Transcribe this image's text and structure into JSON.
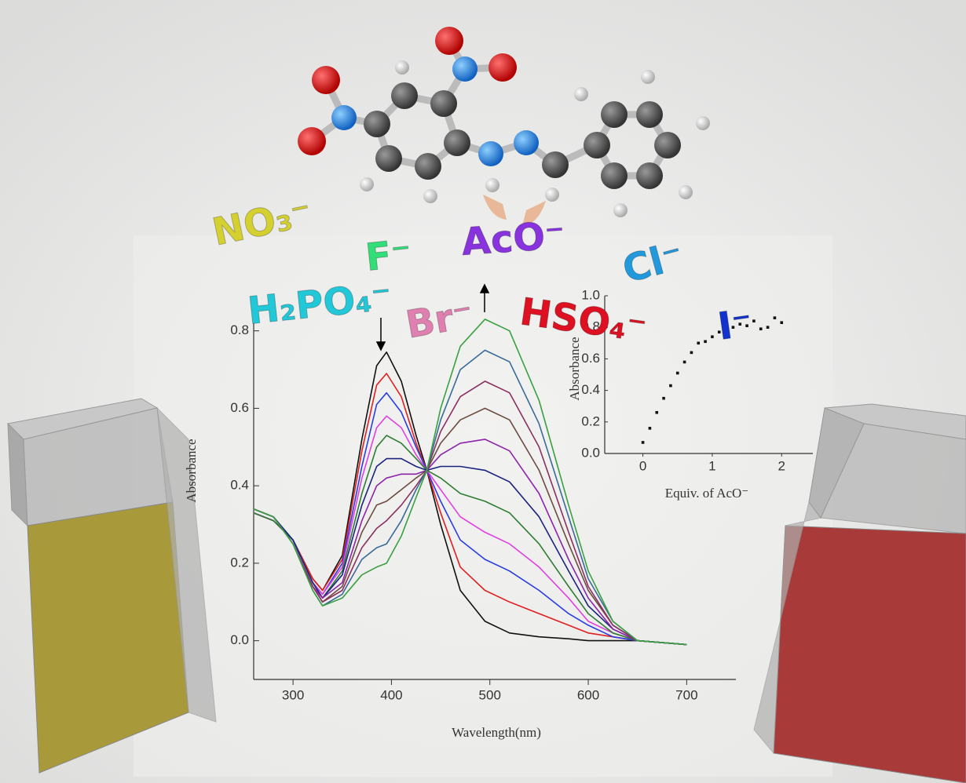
{
  "anions": [
    "NO₃⁻",
    "F⁻",
    "AcO⁻",
    "Cl⁻",
    "I⁻",
    "H₂PO₄⁻",
    "Br⁻",
    "HSO₄⁻"
  ],
  "chart_data": [
    {
      "type": "line",
      "x_label": "Wavelength(nm)",
      "y_label": "Absorbance",
      "x": [
        260,
        280,
        300,
        320,
        330,
        350,
        370,
        385,
        395,
        410,
        425,
        436,
        450,
        470,
        495,
        520,
        550,
        580,
        600,
        625,
        650,
        700
      ],
      "xlim": [
        260,
        750
      ],
      "xticks": [
        300,
        400,
        500,
        600,
        700
      ],
      "ylim": [
        -0.1,
        0.85
      ],
      "yticks": [
        {
          "value": 0,
          "label": "0.0"
        },
        {
          "value": 0.2,
          "label": "0.2"
        },
        {
          "value": 0.4,
          "label": "0.4"
        },
        {
          "value": 0.6,
          "label": "0.6"
        },
        {
          "value": 0.8,
          "label": "0.8"
        }
      ],
      "series": [
        {
          "color": "#111111",
          "values": [
            0.33,
            0.31,
            0.26,
            0.16,
            0.13,
            0.22,
            0.52,
            0.71,
            0.745,
            0.67,
            0.53,
            0.44,
            0.3,
            0.13,
            0.05,
            0.02,
            0.01,
            0.005,
            0,
            0,
            0,
            -0.01
          ]
        },
        {
          "color": "#e02020",
          "values": [
            0.33,
            0.31,
            0.26,
            0.16,
            0.13,
            0.21,
            0.49,
            0.66,
            0.69,
            0.63,
            0.51,
            0.44,
            0.33,
            0.19,
            0.13,
            0.1,
            0.07,
            0.04,
            0.02,
            0.01,
            0,
            -0.01
          ]
        },
        {
          "color": "#2a3ce0",
          "values": [
            0.33,
            0.31,
            0.26,
            0.15,
            0.12,
            0.2,
            0.45,
            0.61,
            0.64,
            0.59,
            0.5,
            0.44,
            0.36,
            0.26,
            0.21,
            0.18,
            0.13,
            0.07,
            0.04,
            0.01,
            0,
            -0.01
          ]
        },
        {
          "color": "#e040e0",
          "values": [
            0.33,
            0.31,
            0.26,
            0.15,
            0.12,
            0.19,
            0.42,
            0.55,
            0.58,
            0.55,
            0.48,
            0.44,
            0.39,
            0.32,
            0.28,
            0.25,
            0.19,
            0.11,
            0.05,
            0.02,
            0,
            -0.01
          ]
        },
        {
          "color": "#2e7d32",
          "values": [
            0.33,
            0.31,
            0.26,
            0.15,
            0.11,
            0.18,
            0.38,
            0.5,
            0.53,
            0.51,
            0.47,
            0.44,
            0.42,
            0.38,
            0.36,
            0.33,
            0.25,
            0.14,
            0.07,
            0.02,
            0,
            -0.01
          ]
        },
        {
          "color": "#1a237e",
          "values": [
            0.34,
            0.32,
            0.26,
            0.15,
            0.11,
            0.17,
            0.35,
            0.45,
            0.47,
            0.47,
            0.45,
            0.44,
            0.45,
            0.45,
            0.44,
            0.41,
            0.32,
            0.18,
            0.09,
            0.03,
            0,
            -0.01
          ]
        },
        {
          "color": "#8e24aa",
          "values": [
            0.34,
            0.32,
            0.25,
            0.14,
            0.11,
            0.15,
            0.31,
            0.4,
            0.42,
            0.43,
            0.43,
            0.44,
            0.48,
            0.51,
            0.52,
            0.49,
            0.38,
            0.21,
            0.11,
            0.03,
            0,
            -0.01
          ]
        },
        {
          "color": "#6d4c41",
          "values": [
            0.34,
            0.32,
            0.25,
            0.14,
            0.1,
            0.14,
            0.28,
            0.35,
            0.36,
            0.39,
            0.42,
            0.44,
            0.51,
            0.57,
            0.6,
            0.57,
            0.44,
            0.25,
            0.13,
            0.04,
            0,
            -0.01
          ]
        },
        {
          "color": "#8a3060",
          "values": [
            0.34,
            0.32,
            0.25,
            0.14,
            0.1,
            0.13,
            0.24,
            0.29,
            0.31,
            0.35,
            0.4,
            0.44,
            0.54,
            0.63,
            0.67,
            0.64,
            0.5,
            0.28,
            0.14,
            0.04,
            0,
            -0.01
          ]
        },
        {
          "color": "#3a6a9a",
          "values": [
            0.34,
            0.32,
            0.25,
            0.13,
            0.09,
            0.12,
            0.21,
            0.24,
            0.25,
            0.31,
            0.39,
            0.44,
            0.57,
            0.7,
            0.75,
            0.72,
            0.56,
            0.32,
            0.16,
            0.05,
            0,
            -0.01
          ]
        },
        {
          "color": "#3aa040",
          "values": [
            0.34,
            0.32,
            0.25,
            0.13,
            0.09,
            0.11,
            0.17,
            0.19,
            0.2,
            0.27,
            0.37,
            0.44,
            0.6,
            0.76,
            0.83,
            0.8,
            0.62,
            0.35,
            0.18,
            0.05,
            0,
            -0.01
          ]
        }
      ]
    },
    {
      "type": "scatter",
      "x_label": "Equiv. of AcO⁻",
      "y_label": "Absorbance",
      "color": "#111111",
      "x": [
        0,
        0.1,
        0.2,
        0.3,
        0.4,
        0.5,
        0.6,
        0.7,
        0.8,
        0.9,
        1.0,
        1.1,
        1.2,
        1.3,
        1.4,
        1.5,
        1.6,
        1.7,
        1.8,
        1.9,
        2.0
      ],
      "values": [
        0.07,
        0.16,
        0.26,
        0.35,
        0.43,
        0.51,
        0.58,
        0.64,
        0.7,
        0.71,
        0.74,
        0.77,
        0.79,
        0.8,
        0.82,
        0.81,
        0.84,
        0.79,
        0.8,
        0.86,
        0.83
      ],
      "xlim": [
        -0.55,
        2.45
      ],
      "xticks": [
        0,
        1,
        2
      ],
      "ylim": [
        0,
        1
      ],
      "yticks": [
        {
          "value": 0,
          "label": "0.0"
        },
        {
          "value": 0.2,
          "label": "0.2"
        },
        {
          "value": 0.4,
          "label": "0.4"
        },
        {
          "value": 0.6,
          "label": "0.6"
        },
        {
          "value": 0.8,
          "label": "0.8"
        },
        {
          "value": 1,
          "label": "1.0"
        }
      ]
    }
  ]
}
